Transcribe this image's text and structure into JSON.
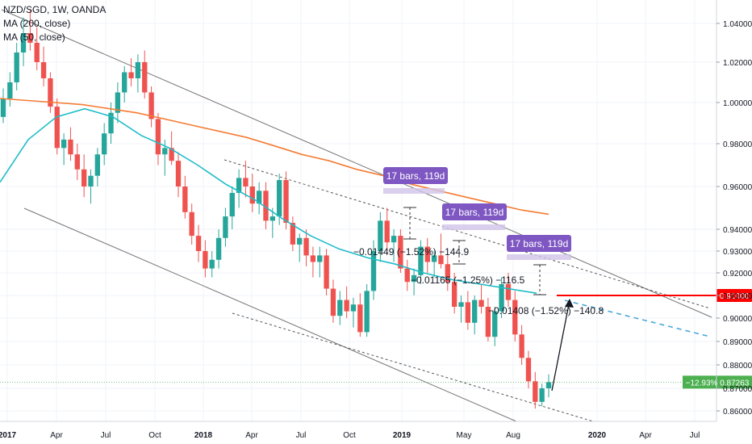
{
  "header": {
    "symbol_line": "NZD/SGD, 1W, OANDA",
    "ma_slow_label": "MA (200, close)",
    "ma_fast_label": "MA (50, close)"
  },
  "colors": {
    "up": "#26a69a",
    "down": "#ef5350",
    "ma200": "#f57c33",
    "ma50": "#1fbcc8",
    "channel": "#757575",
    "target": "#ff0000",
    "projection": "#4aa8d8",
    "bars_badge": "#7e57c2",
    "last_price": "#4caf50"
  },
  "chart_data": {
    "type": "candlestick",
    "title": "NZD/SGD, 1W, OANDA",
    "ylim": [
      0.854,
      1.048
    ],
    "y_ticks": [
      "1.04000",
      "1.02000",
      "1.00000",
      "0.98000",
      "0.96000",
      "0.94000",
      "0.93000",
      "0.92000",
      "0.91000",
      "0.90000",
      "0.89000",
      "0.88000",
      "0.87000",
      "0.86000"
    ],
    "x_tick_labels": [
      "2017",
      "Apr",
      "Jul",
      "Oct",
      "2018",
      "Apr",
      "Jul",
      "Oct",
      "2019",
      "May",
      "Aug",
      "2020",
      "Apr",
      "Jul"
    ],
    "grid": true,
    "candles": [
      {
        "o": 0.993,
        "h": 1.007,
        "l": 0.99,
        "c": 1.002
      },
      {
        "o": 1.002,
        "h": 1.015,
        "l": 0.998,
        "c": 1.01
      },
      {
        "o": 1.01,
        "h": 1.03,
        "l": 1.006,
        "c": 1.025
      },
      {
        "o": 1.025,
        "h": 1.043,
        "l": 1.018,
        "c": 1.035
      },
      {
        "o": 1.035,
        "h": 1.047,
        "l": 1.026,
        "c": 1.03
      },
      {
        "o": 1.03,
        "h": 1.038,
        "l": 1.016,
        "c": 1.02
      },
      {
        "o": 1.02,
        "h": 1.028,
        "l": 1.008,
        "c": 1.012
      },
      {
        "o": 1.012,
        "h": 1.015,
        "l": 0.995,
        "c": 0.998
      },
      {
        "o": 0.998,
        "h": 1.002,
        "l": 0.975,
        "c": 0.978
      },
      {
        "o": 0.978,
        "h": 0.985,
        "l": 0.97,
        "c": 0.982
      },
      {
        "o": 0.982,
        "h": 0.988,
        "l": 0.972,
        "c": 0.975
      },
      {
        "o": 0.975,
        "h": 0.98,
        "l": 0.963,
        "c": 0.968
      },
      {
        "o": 0.968,
        "h": 0.975,
        "l": 0.955,
        "c": 0.96
      },
      {
        "o": 0.96,
        "h": 0.968,
        "l": 0.952,
        "c": 0.965
      },
      {
        "o": 0.965,
        "h": 0.978,
        "l": 0.96,
        "c": 0.975
      },
      {
        "o": 0.975,
        "h": 0.99,
        "l": 0.97,
        "c": 0.985
      },
      {
        "o": 0.985,
        "h": 1.0,
        "l": 0.98,
        "c": 0.995
      },
      {
        "o": 0.995,
        "h": 1.01,
        "l": 0.99,
        "c": 1.005
      },
      {
        "o": 1.005,
        "h": 1.018,
        "l": 1.0,
        "c": 1.015
      },
      {
        "o": 1.015,
        "h": 1.022,
        "l": 1.008,
        "c": 1.012
      },
      {
        "o": 1.012,
        "h": 1.024,
        "l": 1.005,
        "c": 1.02
      },
      {
        "o": 1.02,
        "h": 1.026,
        "l": 1.002,
        "c": 1.005
      },
      {
        "o": 1.005,
        "h": 1.008,
        "l": 0.988,
        "c": 0.992
      },
      {
        "o": 0.992,
        "h": 0.995,
        "l": 0.97,
        "c": 0.975
      },
      {
        "o": 0.975,
        "h": 0.982,
        "l": 0.965,
        "c": 0.978
      },
      {
        "o": 0.978,
        "h": 0.986,
        "l": 0.97,
        "c": 0.972
      },
      {
        "o": 0.972,
        "h": 0.976,
        "l": 0.955,
        "c": 0.96
      },
      {
        "o": 0.96,
        "h": 0.965,
        "l": 0.945,
        "c": 0.948
      },
      {
        "o": 0.948,
        "h": 0.952,
        "l": 0.933,
        "c": 0.937
      },
      {
        "o": 0.937,
        "h": 0.942,
        "l": 0.925,
        "c": 0.93
      },
      {
        "o": 0.93,
        "h": 0.935,
        "l": 0.918,
        "c": 0.922
      },
      {
        "o": 0.922,
        "h": 0.93,
        "l": 0.918,
        "c": 0.926
      },
      {
        "o": 0.926,
        "h": 0.94,
        "l": 0.922,
        "c": 0.936
      },
      {
        "o": 0.936,
        "h": 0.95,
        "l": 0.932,
        "c": 0.946
      },
      {
        "o": 0.946,
        "h": 0.96,
        "l": 0.94,
        "c": 0.957
      },
      {
        "o": 0.957,
        "h": 0.968,
        "l": 0.95,
        "c": 0.964
      },
      {
        "o": 0.964,
        "h": 0.972,
        "l": 0.955,
        "c": 0.96
      },
      {
        "o": 0.96,
        "h": 0.966,
        "l": 0.948,
        "c": 0.952
      },
      {
        "o": 0.952,
        "h": 0.962,
        "l": 0.947,
        "c": 0.958
      },
      {
        "o": 0.958,
        "h": 0.962,
        "l": 0.94,
        "c": 0.944
      },
      {
        "o": 0.944,
        "h": 0.95,
        "l": 0.936,
        "c": 0.946
      },
      {
        "o": 0.946,
        "h": 0.966,
        "l": 0.942,
        "c": 0.963
      },
      {
        "o": 0.963,
        "h": 0.967,
        "l": 0.94,
        "c": 0.943
      },
      {
        "o": 0.943,
        "h": 0.946,
        "l": 0.93,
        "c": 0.933
      },
      {
        "o": 0.933,
        "h": 0.938,
        "l": 0.925,
        "c": 0.936
      },
      {
        "o": 0.936,
        "h": 0.94,
        "l": 0.923,
        "c": 0.928
      },
      {
        "o": 0.928,
        "h": 0.932,
        "l": 0.918,
        "c": 0.925
      },
      {
        "o": 0.925,
        "h": 0.932,
        "l": 0.918,
        "c": 0.928
      },
      {
        "o": 0.928,
        "h": 0.931,
        "l": 0.91,
        "c": 0.913
      },
      {
        "o": 0.913,
        "h": 0.917,
        "l": 0.898,
        "c": 0.901
      },
      {
        "o": 0.901,
        "h": 0.912,
        "l": 0.897,
        "c": 0.908
      },
      {
        "o": 0.908,
        "h": 0.914,
        "l": 0.9,
        "c": 0.903
      },
      {
        "o": 0.903,
        "h": 0.909,
        "l": 0.896,
        "c": 0.906
      },
      {
        "o": 0.906,
        "h": 0.911,
        "l": 0.892,
        "c": 0.894
      },
      {
        "o": 0.894,
        "h": 0.915,
        "l": 0.892,
        "c": 0.912
      },
      {
        "o": 0.912,
        "h": 0.935,
        "l": 0.908,
        "c": 0.93
      },
      {
        "o": 0.93,
        "h": 0.948,
        "l": 0.925,
        "c": 0.944
      },
      {
        "o": 0.944,
        "h": 0.95,
        "l": 0.93,
        "c": 0.934
      },
      {
        "o": 0.934,
        "h": 0.94,
        "l": 0.925,
        "c": 0.937
      },
      {
        "o": 0.937,
        "h": 0.94,
        "l": 0.92,
        "c": 0.922
      },
      {
        "o": 0.922,
        "h": 0.926,
        "l": 0.912,
        "c": 0.916
      },
      {
        "o": 0.916,
        "h": 0.922,
        "l": 0.91,
        "c": 0.919
      },
      {
        "o": 0.919,
        "h": 0.935,
        "l": 0.915,
        "c": 0.932
      },
      {
        "o": 0.932,
        "h": 0.936,
        "l": 0.92,
        "c": 0.925
      },
      {
        "o": 0.925,
        "h": 0.93,
        "l": 0.918,
        "c": 0.928
      },
      {
        "o": 0.928,
        "h": 0.938,
        "l": 0.922,
        "c": 0.924
      },
      {
        "o": 0.924,
        "h": 0.928,
        "l": 0.912,
        "c": 0.916
      },
      {
        "o": 0.916,
        "h": 0.92,
        "l": 0.902,
        "c": 0.905
      },
      {
        "o": 0.905,
        "h": 0.91,
        "l": 0.898,
        "c": 0.907
      },
      {
        "o": 0.907,
        "h": 0.912,
        "l": 0.895,
        "c": 0.898
      },
      {
        "o": 0.898,
        "h": 0.91,
        "l": 0.893,
        "c": 0.908
      },
      {
        "o": 0.908,
        "h": 0.915,
        "l": 0.902,
        "c": 0.905
      },
      {
        "o": 0.905,
        "h": 0.909,
        "l": 0.89,
        "c": 0.892
      },
      {
        "o": 0.892,
        "h": 0.905,
        "l": 0.888,
        "c": 0.903
      },
      {
        "o": 0.903,
        "h": 0.918,
        "l": 0.9,
        "c": 0.915
      },
      {
        "o": 0.915,
        "h": 0.92,
        "l": 0.905,
        "c": 0.908
      },
      {
        "o": 0.908,
        "h": 0.912,
        "l": 0.89,
        "c": 0.893
      },
      {
        "o": 0.893,
        "h": 0.897,
        "l": 0.88,
        "c": 0.883
      },
      {
        "o": 0.883,
        "h": 0.886,
        "l": 0.87,
        "c": 0.873
      },
      {
        "o": 0.873,
        "h": 0.877,
        "l": 0.861,
        "c": 0.864
      },
      {
        "o": 0.864,
        "h": 0.872,
        "l": 0.862,
        "c": 0.87
      },
      {
        "o": 0.87,
        "h": 0.876,
        "l": 0.866,
        "c": 0.8726
      }
    ],
    "ma200": [
      1.002,
      1.001,
      1.0,
      0.999,
      0.997,
      0.995,
      0.992,
      0.989,
      0.986,
      0.983,
      0.979,
      0.975,
      0.972,
      0.968,
      0.965,
      0.961,
      0.958,
      0.955,
      0.952,
      0.949,
      0.947
    ],
    "ma50": [
      0.962,
      0.982,
      0.993,
      0.997,
      0.993,
      0.984,
      0.978,
      0.97,
      0.961,
      0.954,
      0.945,
      0.937,
      0.931,
      0.927,
      0.924,
      0.92,
      0.917,
      0.915,
      0.913,
      0.911
    ],
    "last_price": {
      "value": "0.87263",
      "change": "−12.93%"
    },
    "target_level": {
      "value": "0.91000"
    },
    "bars_labels": [
      "17 bars, 119d",
      "17 bars, 119d",
      "17 bars, 119d"
    ],
    "measurements": [
      "−0.01449 (−1.52%) −144.9",
      "−0.01165 (−1.25%) −116.5",
      "−0.01408 (−1.52%) −140.8"
    ]
  }
}
